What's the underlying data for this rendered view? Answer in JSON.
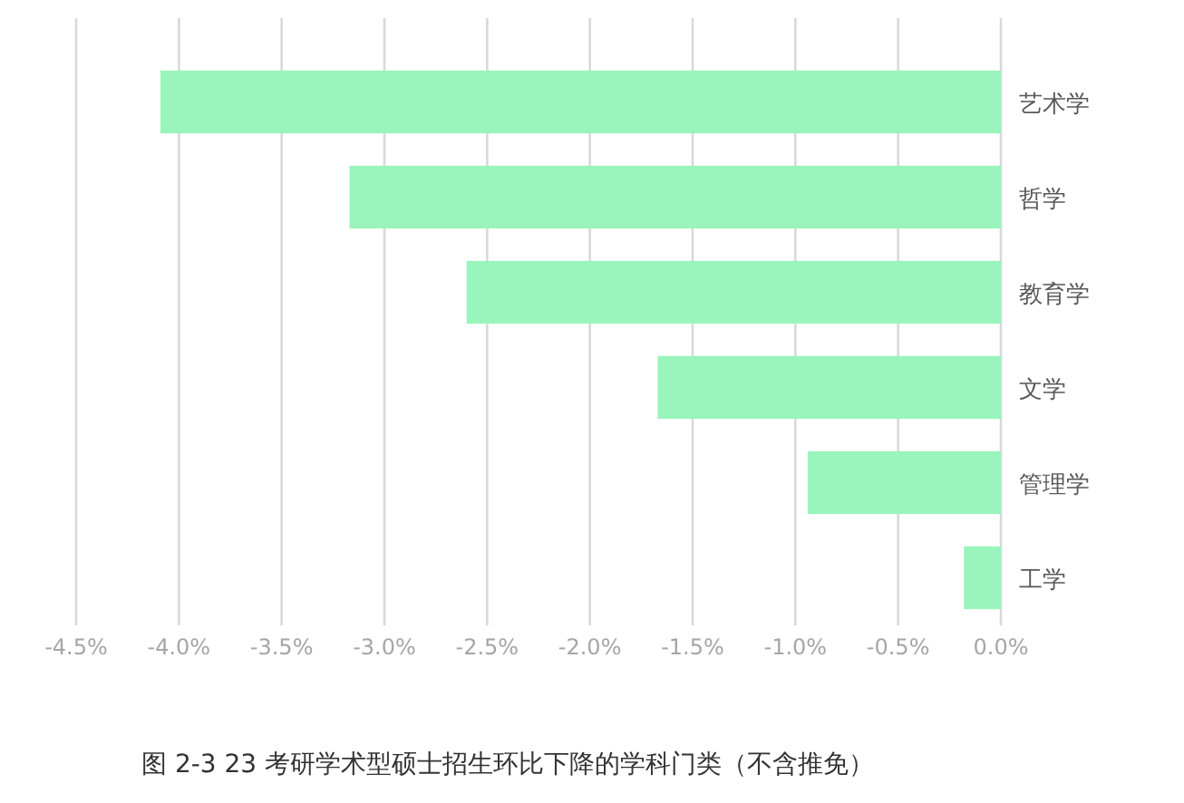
{
  "chart_data": {
    "type": "bar",
    "orientation": "horizontal",
    "title": "图  2-3 23 考研学术型硕士招生环比下降的学科门类（不含推免）",
    "categories": [
      "艺术学",
      "哲学",
      "教育学",
      "文学",
      "管理学",
      "工学"
    ],
    "values": [
      -4.09,
      -3.17,
      -2.6,
      -1.67,
      -0.94,
      -0.18
    ],
    "color": "#99f5bb",
    "grid": "x",
    "xlim": [
      -4.5,
      0
    ],
    "xticks": [
      {
        "value": -4.5,
        "label": "-4.5%"
      },
      {
        "value": -4,
        "label": "-4.0%"
      },
      {
        "value": -3.5,
        "label": "-3.5%"
      },
      {
        "value": -3,
        "label": "-3.0%"
      },
      {
        "value": -2.5,
        "label": "-2.5%"
      },
      {
        "value": -2,
        "label": "-2.0%"
      },
      {
        "value": -1.5,
        "label": "-1.5%"
      },
      {
        "value": -1,
        "label": "-1.0%"
      },
      {
        "value": -0.5,
        "label": "-0.5%"
      },
      {
        "value": 0,
        "label": "0.0%"
      }
    ]
  }
}
